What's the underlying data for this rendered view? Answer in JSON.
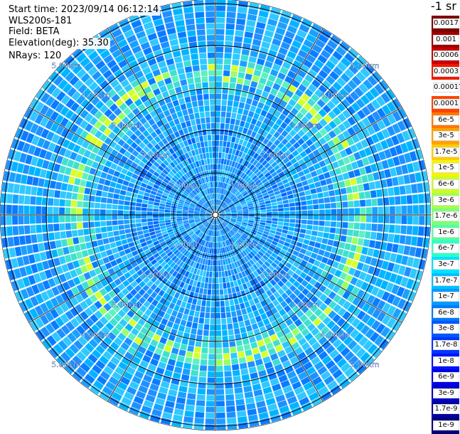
{
  "plot_info": {
    "start_time": "Start time: 2023/09/14 06:12:14",
    "instrument": "WLS200s-181",
    "field": "Field: BETA",
    "elevation": "Elevation(deg): 35.30",
    "nrays": "NRays: 120"
  },
  "range_rings": [
    "1.00km",
    "2.00km",
    "3.00km",
    "4.00km",
    "5.00km"
  ],
  "colorbar": {
    "unit_label": "-1 sr",
    "ticks": [
      "0.0017",
      "0.001",
      "0.0006",
      "0.0003",
      "0.00017",
      "0.0001",
      "6e-5",
      "3e-5",
      "1.7e-5",
      "1e-5",
      "6e-6",
      "3e-6",
      "1.7e-6",
      "1e-6",
      "6e-7",
      "3e-7",
      "1.7e-7",
      "1e-7",
      "6e-8",
      "3e-8",
      "1.7e-8",
      "1e-8",
      "6e-9",
      "3e-9",
      "1.7e-9",
      "1e-9"
    ],
    "colors": [
      "#7f0000",
      "#a00000",
      "#c80000",
      "#ef1a00",
      "#ffffff",
      "#ff4400",
      "#ff7700",
      "#ffa100",
      "#ffcc00",
      "#f6f500",
      "#cdfd25",
      "#a6ff4e",
      "#7fff77",
      "#56ffa0",
      "#2dffc9",
      "#00e2ff",
      "#00c0ff",
      "#009cff",
      "#007aff",
      "#0058ff",
      "#0036ff",
      "#0014ff",
      "#0000e8",
      "#0000c4",
      "#00009f",
      "#00007b"
    ]
  }
}
